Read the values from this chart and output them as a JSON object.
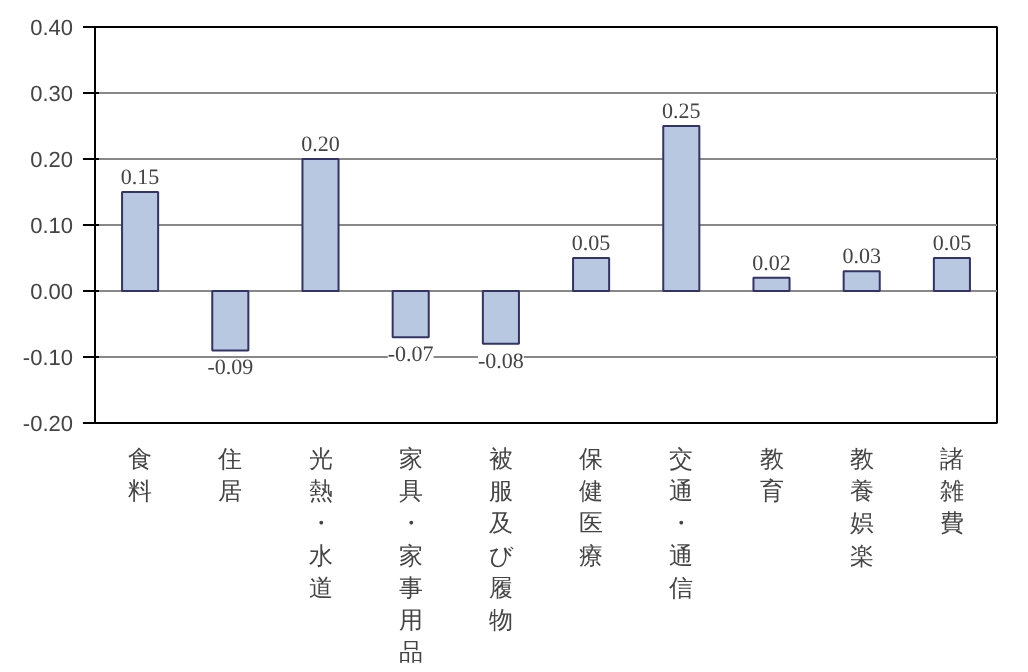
{
  "chart_data": {
    "type": "bar",
    "categories": [
      "食料",
      "住居",
      "光熱・水道",
      "家具・家事用品",
      "被服及び履物",
      "保健医療",
      "交通・通信",
      "教育",
      "教養娯楽",
      "諸雑費"
    ],
    "values": [
      0.15,
      -0.09,
      0.2,
      -0.07,
      -0.08,
      0.05,
      0.25,
      0.02,
      0.03,
      0.05
    ],
    "value_labels": [
      "0.15",
      "-0.09",
      "0.20",
      "-0.07",
      "-0.08",
      "0.05",
      "0.25",
      "0.02",
      "0.03",
      "0.05"
    ],
    "color": "#b8c8e0",
    "ylim": [
      -0.2,
      0.4
    ],
    "yticks": [
      {
        "value": -0.2,
        "label": "-0.20"
      },
      {
        "value": -0.1,
        "label": "-0.10"
      },
      {
        "value": 0,
        "label": "0.00"
      },
      {
        "value": 0.1,
        "label": "0.10"
      },
      {
        "value": 0.2,
        "label": "0.20"
      },
      {
        "value": 0.3,
        "label": "0.30"
      },
      {
        "value": 0.4,
        "label": "0.40"
      }
    ],
    "grid": "y"
  }
}
